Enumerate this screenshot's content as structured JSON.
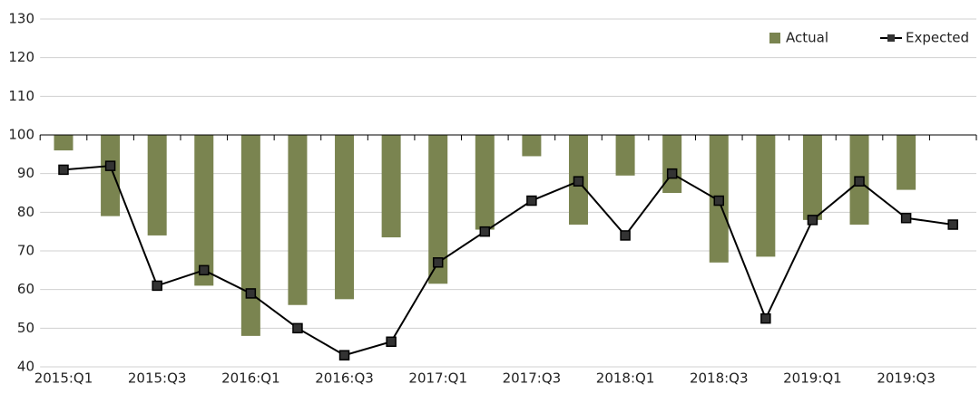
{
  "chart_data": {
    "type": "bar",
    "categories": [
      "2015:Q1",
      null,
      "2015:Q3",
      null,
      "2016:Q1",
      null,
      "2016:Q3",
      null,
      "2017:Q1",
      null,
      "2017:Q3",
      null,
      "2018:Q1",
      null,
      "2018:Q3",
      null,
      "2019:Q1",
      null,
      "2019:Q3",
      null
    ],
    "baseline": 100,
    "series": [
      {
        "name": "Actual",
        "type": "bar",
        "color": "#7a8450",
        "values": [
          96,
          79,
          74,
          61,
          48,
          56,
          57.5,
          73.5,
          61.5,
          75.5,
          94.5,
          76.8,
          89.5,
          85,
          67,
          68.5,
          78,
          76.8,
          85.8,
          null
        ]
      },
      {
        "name": "Expected",
        "type": "line",
        "color": "#000000",
        "values": [
          91,
          92,
          61,
          65,
          59,
          50,
          43,
          46.5,
          67,
          75,
          83,
          88,
          74,
          90,
          83,
          52.5,
          78,
          88,
          78.5,
          76.8
        ]
      }
    ],
    "ylim": [
      40,
      130
    ],
    "yticks": [
      40,
      50,
      60,
      70,
      80,
      90,
      100,
      110,
      120,
      130
    ],
    "grid": true,
    "legend": "top-right"
  }
}
